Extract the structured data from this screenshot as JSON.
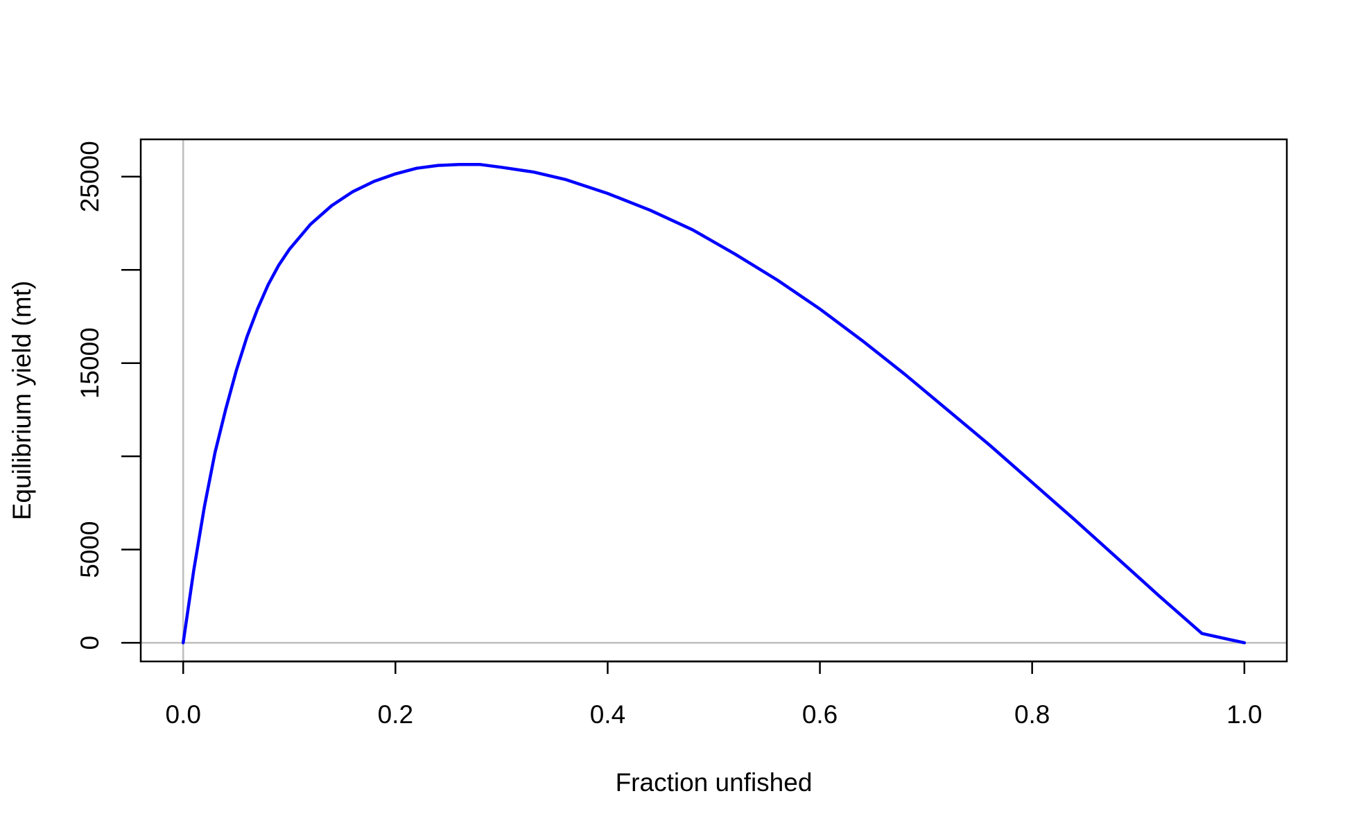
{
  "chart_data": {
    "type": "line",
    "title": "",
    "xlabel": "Fraction unfished",
    "ylabel": "Equilibrium yield (mt)",
    "xlim": [
      -0.04,
      1.04
    ],
    "ylim": [
      -1000,
      27000
    ],
    "xticks": [
      0.0,
      0.2,
      0.4,
      0.6,
      0.8,
      1.0
    ],
    "xtick_labels": [
      "0.0",
      "0.2",
      "0.4",
      "0.6",
      "0.8",
      "1.0"
    ],
    "yticks": [
      0,
      5000,
      10000,
      15000,
      20000,
      25000
    ],
    "ytick_labels": [
      "0",
      "5000",
      "",
      "15000",
      "",
      "25000"
    ],
    "reference_lines": {
      "x": 0,
      "y": 0,
      "color": "#bebebe"
    },
    "grid": false,
    "series": [
      {
        "color": "#0000ff",
        "x": [
          0.0,
          0.01,
          0.02,
          0.03,
          0.04,
          0.05,
          0.06,
          0.07,
          0.08,
          0.09,
          0.1,
          0.12,
          0.14,
          0.16,
          0.18,
          0.2,
          0.22,
          0.24,
          0.26,
          0.28,
          0.3,
          0.33,
          0.36,
          0.4,
          0.44,
          0.48,
          0.52,
          0.56,
          0.6,
          0.64,
          0.68,
          0.72,
          0.76,
          0.8,
          0.84,
          0.88,
          0.92,
          0.96,
          1.0
        ],
        "y": [
          0,
          3900,
          7300,
          10200,
          12500,
          14600,
          16400,
          17900,
          19200,
          20250,
          21100,
          22450,
          23450,
          24200,
          24750,
          25150,
          25450,
          25600,
          25650,
          25650,
          25500,
          25250,
          24850,
          24100,
          23200,
          22150,
          20850,
          19450,
          17900,
          16200,
          14400,
          12500,
          10600,
          8600,
          6600,
          4550,
          2500,
          500,
          0
        ]
      }
    ]
  }
}
